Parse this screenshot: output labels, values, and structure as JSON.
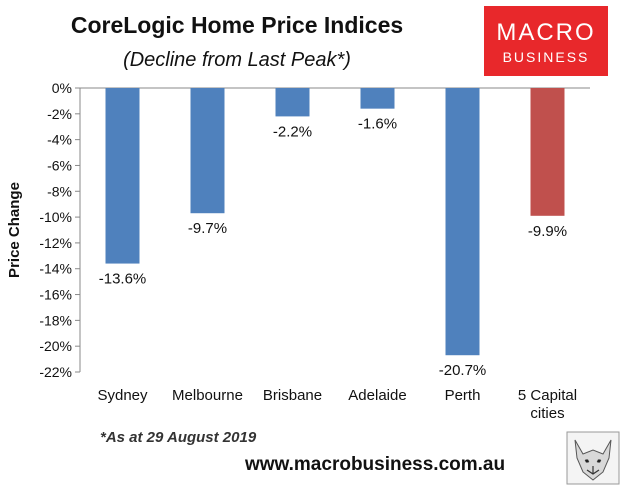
{
  "chart_data": {
    "type": "bar",
    "title": "CoreLogic Home Price Indices",
    "subtitle": "(Decline from Last Peak*)",
    "xlabel": "",
    "ylabel": "Price Change",
    "categories": [
      "Sydney",
      "Melbourne",
      "Brisbane",
      "Adelaide",
      "Perth",
      "5 Capital cities"
    ],
    "values": [
      -13.6,
      -9.7,
      -2.2,
      -1.6,
      -20.7,
      -9.9
    ],
    "data_labels": [
      "-13.6%",
      "-9.7%",
      "-2.2%",
      "-1.6%",
      "-20.7%",
      "-9.9%"
    ],
    "bar_colors": [
      "#4f81bd",
      "#4f81bd",
      "#4f81bd",
      "#4f81bd",
      "#4f81bd",
      "#c0504d"
    ],
    "ylim": [
      -22,
      0
    ],
    "yticks": [
      0,
      -2,
      -4,
      -6,
      -8,
      -10,
      -12,
      -14,
      -16,
      -18,
      -20,
      -22
    ],
    "ytick_labels": [
      "0%",
      "-2%",
      "-4%",
      "-6%",
      "-8%",
      "-10%",
      "-12%",
      "-14%",
      "-16%",
      "-18%",
      "-20%",
      "-22%"
    ],
    "grid": false,
    "legend": "none"
  },
  "footnote": "*As at 29 August 2019",
  "source_url": "www.macrobusiness.com.au",
  "logo": {
    "line1": "MACRO",
    "line2": "BUSINESS",
    "color": "#e8282b"
  },
  "wolf_icon": "wolf-head-icon"
}
